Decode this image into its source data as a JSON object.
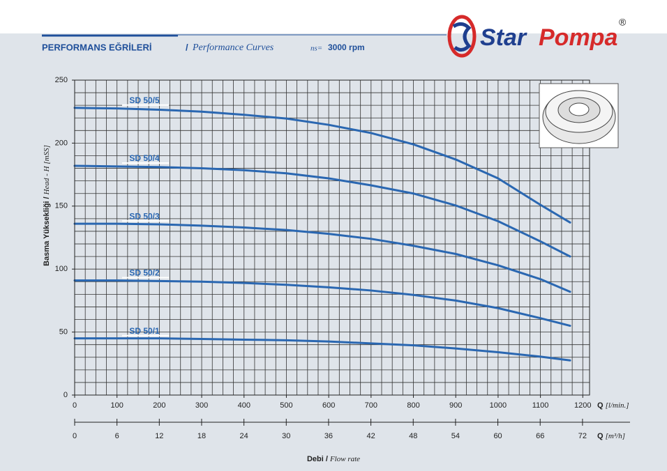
{
  "header": {
    "title": "PERFORMANS EĞRİLERİ",
    "separator": "/",
    "subtitle": "Performance Curves",
    "speed_label": "ns=",
    "speed": "3000 rpm"
  },
  "logo": {
    "word1": "Star",
    "word2": "Pompa",
    "mark": "®"
  },
  "chart_data": {
    "type": "line",
    "y_label": "Basma Yüksekliği /",
    "y_label_en": "Head - H [mSS]",
    "x_label": "Q",
    "x_label_unit": "[l/min.]",
    "x2_label": "Q",
    "x2_label_unit": "[m³/h]",
    "footer_label": "Debi /",
    "footer_label_en": "Flow rate",
    "x": [
      0,
      100,
      200,
      300,
      400,
      500,
      600,
      700,
      800,
      900,
      1000,
      1100,
      1170
    ],
    "series": [
      {
        "name": "SD 50/5",
        "color": "#2a67b1",
        "values": [
          228,
          227.5,
          226.5,
          225,
          222.5,
          219.5,
          214.5,
          208,
          199,
          187,
          172,
          151,
          137
        ]
      },
      {
        "name": "SD 50/4",
        "color": "#2a67b1",
        "values": [
          182,
          181.5,
          181,
          180,
          178.5,
          176,
          172,
          166.5,
          160,
          150.5,
          138,
          122,
          110
        ]
      },
      {
        "name": "SD 50/3",
        "color": "#2a67b1",
        "values": [
          136,
          136,
          135.5,
          134.5,
          133,
          131,
          128,
          124,
          118.5,
          112,
          103,
          92,
          82
        ]
      },
      {
        "name": "SD 50/2",
        "color": "#2a67b1",
        "values": [
          91,
          91,
          90.5,
          90,
          89,
          87.5,
          85.5,
          83,
          79.5,
          75,
          69,
          61,
          55
        ]
      },
      {
        "name": "SD 50/1",
        "color": "#2a67b1",
        "values": [
          45,
          45,
          45,
          44.5,
          44,
          43.5,
          42.5,
          41,
          39.5,
          37,
          34,
          30.5,
          27.5
        ]
      }
    ],
    "xlim": [
      0,
      1216
    ],
    "xticks": [
      0,
      100,
      200,
      300,
      400,
      500,
      600,
      700,
      800,
      900,
      1000,
      1100,
      1200
    ],
    "ylim": [
      0,
      250
    ],
    "yticks": [
      0,
      50,
      100,
      150,
      200,
      250
    ],
    "x2lim": [
      0,
      73
    ],
    "x2ticks": [
      0,
      6,
      12,
      18,
      24,
      30,
      36,
      42,
      48,
      54,
      60,
      66,
      72
    ],
    "grid": true,
    "xgrid": [
      0,
      25,
      50,
      75,
      100,
      125,
      150,
      175,
      200,
      225,
      250,
      275,
      300,
      325,
      350,
      375,
      400,
      425,
      450,
      475,
      500,
      525,
      550,
      575,
      600,
      625,
      650,
      675,
      700,
      725,
      750,
      775,
      800,
      825,
      850,
      875,
      900,
      925,
      950,
      975,
      1000,
      1025,
      1050,
      1075,
      1100,
      1125,
      1150,
      1175,
      1200
    ],
    "ygrid": [
      0,
      10,
      20,
      30,
      40,
      50,
      60,
      70,
      80,
      90,
      100,
      110,
      120,
      130,
      140,
      150,
      160,
      170,
      180,
      190,
      200,
      210,
      220,
      230,
      240,
      250
    ]
  }
}
